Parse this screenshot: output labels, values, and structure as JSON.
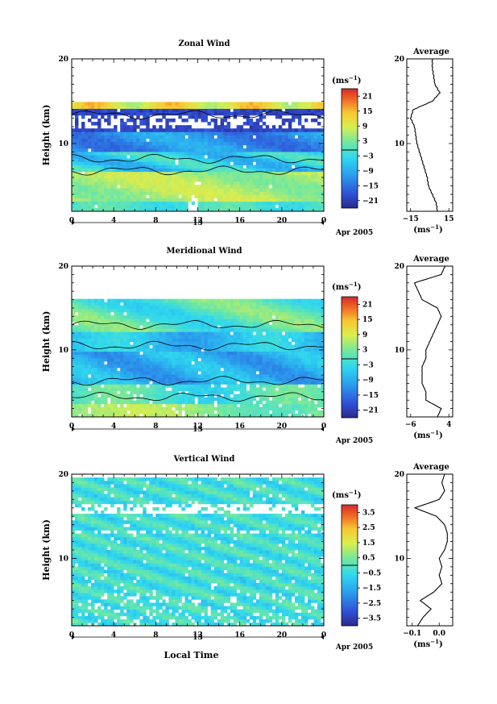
{
  "figure": {
    "xlabel": "Local Time",
    "ylabel": "Height (km)",
    "date_label": "Apr 2005",
    "day_label": "13",
    "x_ticks": [
      "0",
      "4",
      "8",
      "12",
      "16",
      "20",
      "0"
    ],
    "y_ticks": [
      "20",
      "10"
    ],
    "avg_title": "Average",
    "unit_label": "(ms",
    "unit_sup": "−1",
    "unit_close": ")"
  },
  "chart_data": [
    {
      "type": "heatmap",
      "title": "Zonal Wind",
      "x_range": [
        0,
        24
      ],
      "ylim": [
        2,
        20
      ],
      "colorbar_ticks": [
        "21",
        "15",
        "9",
        "3",
        "−3",
        "−9",
        "−15",
        "−21"
      ],
      "colorbar_range": [
        -24,
        24
      ],
      "profile": {
        "title": "Average",
        "x_ticks": [
          "−15",
          "15"
        ],
        "xlim": [
          -18,
          18
        ],
        "heights": [
          2,
          3,
          4,
          5,
          6,
          7,
          8,
          9,
          10,
          11,
          12,
          13,
          14,
          15,
          16,
          17,
          18,
          19,
          20
        ],
        "values": [
          6,
          5,
          2,
          -1,
          -2,
          -4,
          -6,
          -8,
          -10,
          -11,
          -12,
          -15,
          -13,
          2,
          8,
          4,
          3,
          2,
          2
        ]
      }
    },
    {
      "type": "heatmap",
      "title": "Meridional Wind",
      "x_range": [
        0,
        24
      ],
      "ylim": [
        2,
        20
      ],
      "colorbar_ticks": [
        "21",
        "15",
        "9",
        "3",
        "−3",
        "−9",
        "−15",
        "−21"
      ],
      "colorbar_range": [
        -24,
        24
      ],
      "profile": {
        "title": "Average",
        "x_ticks": [
          "−6",
          "4"
        ],
        "xlim": [
          -7,
          5
        ],
        "heights": [
          2,
          3,
          4,
          5,
          6,
          7,
          8,
          9,
          10,
          11,
          12,
          13,
          14,
          15,
          16,
          17,
          18,
          19,
          20
        ],
        "values": [
          1,
          2,
          -2,
          -2,
          -3,
          -3,
          -3,
          -2,
          -2,
          -1,
          0,
          1,
          2,
          1,
          -3,
          -4,
          -5,
          2,
          3
        ]
      }
    },
    {
      "type": "heatmap",
      "title": "Vertical Wind",
      "x_range": [
        0,
        24
      ],
      "ylim": [
        2,
        20
      ],
      "colorbar_ticks": [
        "3.5",
        "2.5",
        "1.5",
        "0.5",
        "−0.5",
        "−1.5",
        "−2.5",
        "−3.5"
      ],
      "colorbar_range": [
        -4,
        4
      ],
      "profile": {
        "title": "Average",
        "x_ticks": [
          "−0.1",
          "0.0"
        ],
        "xlim": [
          -0.12,
          0.05
        ],
        "heights": [
          2,
          3,
          4,
          5,
          6,
          7,
          8,
          9,
          10,
          11,
          12,
          13,
          14,
          15,
          16,
          17,
          18,
          19,
          20
        ],
        "values": [
          -0.08,
          -0.06,
          -0.03,
          -0.07,
          -0.02,
          0.01,
          0.0,
          0.01,
          0.0,
          0.02,
          0.03,
          0.03,
          0.02,
          -0.01,
          -0.09,
          0.0,
          0.02,
          0.01,
          0.02
        ]
      }
    }
  ]
}
